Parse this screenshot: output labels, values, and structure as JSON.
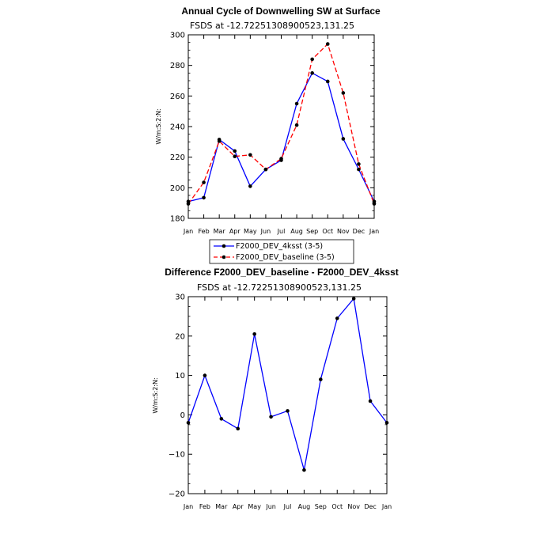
{
  "chart_data": [
    {
      "type": "line",
      "title": "Annual Cycle of Downwelling SW at Surface",
      "subtitle": "FSDS at -12.72251308900523,131.25",
      "ylabel": "W/m:S:2:N:",
      "xlabel": "",
      "categories": [
        "Jan",
        "Feb",
        "Mar",
        "Apr",
        "May",
        "Jun",
        "Jul",
        "Aug",
        "Sep",
        "Oct",
        "Nov",
        "Dec",
        "Jan"
      ],
      "ylim": [
        180,
        300
      ],
      "yticks": [
        180,
        200,
        220,
        240,
        260,
        280,
        300
      ],
      "ytick_labels": [
        "180",
        "200",
        "220",
        "240",
        "260",
        "280",
        "300"
      ],
      "series": [
        {
          "name": "F2000_DEV_4ksst (3-5)",
          "color": "#0000ff",
          "dash": "solid",
          "values": [
            191,
            193.5,
            231.5,
            224,
            201,
            212,
            218,
            255,
            275,
            269.5,
            232,
            212,
            191
          ]
        },
        {
          "name": "F2000_DEV_baseline (3-5)",
          "color": "#ff0000",
          "dash": "dashed",
          "values": [
            189.5,
            203.5,
            230.5,
            220.5,
            221.5,
            212,
            219,
            241,
            284,
            294,
            262,
            215.5,
            189.5
          ]
        }
      ],
      "legend_position": "below"
    },
    {
      "type": "line",
      "title": "Difference F2000_DEV_baseline - F2000_DEV_4ksst",
      "subtitle": "FSDS at -12.72251308900523,131.25",
      "ylabel": "W/m:S:2:N:",
      "xlabel": "",
      "categories": [
        "Jan",
        "Feb",
        "Mar",
        "Apr",
        "May",
        "Jun",
        "Jul",
        "Aug",
        "Sep",
        "Oct",
        "Nov",
        "Dec",
        "Jan"
      ],
      "ylim": [
        -20,
        30
      ],
      "yticks": [
        -20,
        -10,
        0,
        10,
        20,
        30
      ],
      "ytick_labels": [
        "−20",
        "−10",
        "0",
        "10",
        "20",
        "30"
      ],
      "series": [
        {
          "name": "difference",
          "color": "#0000ff",
          "dash": "solid",
          "values": [
            -2,
            10,
            -1,
            -3.5,
            20.5,
            -0.5,
            1,
            -14,
            9,
            24.5,
            29.5,
            3.5,
            -2
          ]
        }
      ]
    }
  ]
}
